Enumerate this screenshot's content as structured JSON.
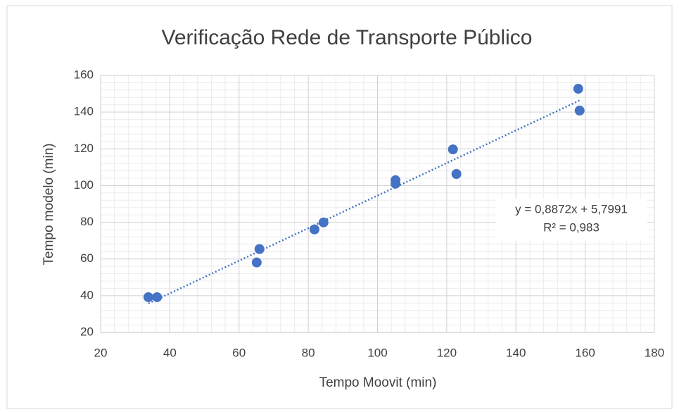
{
  "chart_data": {
    "type": "scatter",
    "title": "Verificação Rede de Transporte Público",
    "x_label": "Tempo Moovit (min)",
    "y_label": "Tempo modelo (min)",
    "series": [
      {
        "name": "Tempo modelo",
        "color": "#4472c4",
        "x": [
          33.8,
          36.3,
          65.1,
          65.9,
          81.8,
          84.4,
          105.2,
          105.2,
          121.8,
          122.8,
          158,
          158.4
        ],
        "values": [
          39.2,
          39.2,
          58.1,
          65.4,
          76.1,
          79.9,
          102.9,
          101,
          119.7,
          106.3,
          152.7,
          140.8
        ]
      }
    ],
    "trendline": {
      "slope": 0.8872,
      "intercept": 5.7991,
      "equation": "y = 0,8872x + 5,7991",
      "r_squared": "R² = 0,983"
    },
    "xlim": [
      20,
      180
    ],
    "xticks": [
      20,
      40,
      60,
      80,
      100,
      120,
      140,
      160,
      180
    ],
    "ylim": [
      20,
      160
    ],
    "yticks": [
      20,
      40,
      60,
      80,
      100,
      120,
      140,
      160
    ],
    "grid": true,
    "minor_grid": true
  }
}
